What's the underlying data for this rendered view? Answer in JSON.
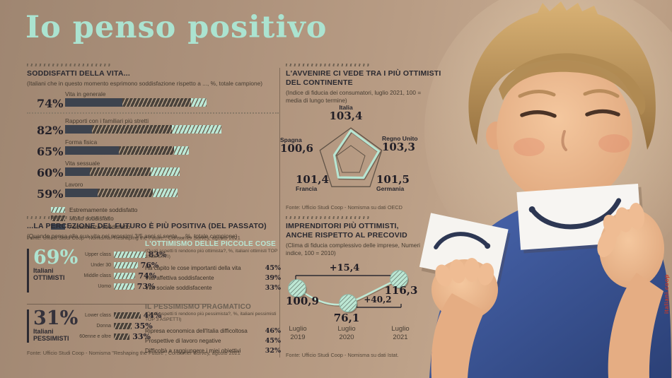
{
  "page": {
    "title": "Io penso positivo",
    "watermark": "italiani.coop"
  },
  "colors": {
    "background": "#b3967c",
    "mint": "#aee3d0",
    "dark_bar": "#3d434e",
    "hatch_dark": "#49413a",
    "text_dark": "#2a2930",
    "watermark_red": "#c43a2b"
  },
  "chart_data": [
    {
      "id": "satisfaction",
      "type": "bar",
      "title": "SODDISFATTI DELLA VITA...",
      "subtitle": "(Italiani che in questo momento esprimono soddisfazione rispetto a ..., %, totale campione)",
      "categories": [
        "Vita in generale",
        "Rapporti con i familiari più stretti",
        "Forma fisica",
        "Vita sessuale",
        "Lavoro"
      ],
      "totals": [
        74,
        82,
        65,
        60,
        59
      ],
      "totals_display": [
        "74%",
        "82%",
        "65%",
        "60%",
        "59%"
      ],
      "series": [
        {
          "name": "Abbastanza soddisfatto",
          "style": "solid-dark",
          "values": [
            30,
            14,
            28,
            13,
            17
          ]
        },
        {
          "name": "Molto soddisfatto",
          "style": "hatch-dark",
          "values": [
            36,
            42,
            29,
            32,
            29
          ]
        },
        {
          "name": "Estremamente soddisfatto",
          "style": "hatch-mint",
          "values": [
            8,
            26,
            8,
            15,
            13
          ]
        }
      ],
      "legend": [
        "Estremamente soddisfatto",
        "Molto soddisfatto",
        "Abbastanza soddisfatto"
      ],
      "legend_styles": [
        "hatch-mint",
        "hatch-dark",
        "solid-dark"
      ],
      "source": "Fonte: Ufficio Studi Coop - Nomisma \"Reshaping the Future\", Consumer Survey, agosto 2021"
    },
    {
      "id": "consumer-confidence-radar",
      "type": "radar",
      "title": "L'AVVENIRE CI VEDE TRA I PIÙ OTTIMISTI DEL CONTINENTE",
      "subtitle": "(Indice di fiducia dei consumatori, luglio 2021, 100 = media di lungo termine)",
      "categories": [
        "Italia",
        "Regno Unito",
        "Germania",
        "Francia",
        "Spagna"
      ],
      "values": [
        103.4,
        103.3,
        101.5,
        101.4,
        100.6
      ],
      "values_display": [
        "103,4",
        "103,3",
        "101,5",
        "101,4",
        "100,6"
      ],
      "rings": [
        100,
        104
      ],
      "source": "Fonte: Ufficio Studi Coop - Nomisma su dati OECD"
    },
    {
      "id": "future-perception",
      "type": "bar",
      "title": "...LA PERCEZIONE DEL FUTURO È PIÙ POSITIVA (DEL PASSATO)",
      "subtitle": "(Quando pensa alla sua vita nei prossimi 3/5 anni si sente..., %, totale campione)",
      "groups": [
        {
          "value_display": "69%",
          "label_line1": "Italiani",
          "label_line2": "OTTIMISTI",
          "style": "hatch-mint",
          "categories": [
            "Upper class",
            "Under 30",
            "Middle class",
            "Uomo"
          ],
          "values": [
            83,
            76,
            74,
            73
          ],
          "values_display": [
            "83%",
            "76%",
            "74%",
            "73%"
          ]
        },
        {
          "value_display": "31%",
          "label_line1": "Italiani",
          "label_line2": "PESSIMISTI",
          "style": "hatch-dark",
          "categories": [
            "Lower class",
            "Donna",
            "60enne e oltre"
          ],
          "values": [
            44,
            35,
            33
          ],
          "values_display": [
            "44%",
            "35%",
            "33%"
          ]
        }
      ],
      "source": "Fonte: Ufficio Studi Coop - Nomisma \"Reshaping the Future\", Consumer Survey, agosto 2021"
    },
    {
      "id": "top3-aspects",
      "type": "table",
      "optimism": {
        "title": "L'OTTIMISMO DELLE PICCOLE COSE",
        "subtitle": "(Quali aspetti ti rendono più ottimista?, %, italiani ottimisti TOP 3 ASPETTI)",
        "rows": [
          [
            "Ha capito le cose importanti della vita",
            "45%"
          ],
          [
            "Vita affettiva soddisfacente",
            "39%"
          ],
          [
            "Vita sociale soddisfacente",
            "33%"
          ]
        ]
      },
      "pessimism": {
        "title": "IL PESSIMISMO PRAGMATICO",
        "subtitle": "(Quali aspetti ti rendono più pessimista?, %, italiani pessimisti TOP 3 ASPETTI)",
        "rows": [
          [
            "Ripresa economica dell'Italia difficoltosa",
            "46%"
          ],
          [
            "Prospettive di lavoro negative",
            "45%"
          ],
          [
            "Difficoltà a raggiungere i miei obiettivi",
            "32%"
          ]
        ]
      }
    },
    {
      "id": "business-confidence",
      "type": "line",
      "title": "IMPRENDITORI PIÙ OTTIMISTI, ANCHE RISPETTO AL PRECOVID",
      "subtitle": "(Clima di fiducia complessivo delle imprese, Numeri indice, 100 = 2010)",
      "x": [
        "Luglio 2019",
        "Luglio 2020",
        "Luglio 2021"
      ],
      "values": [
        100.9,
        76.1,
        116.3
      ],
      "values_display": [
        "100,9",
        "76,1",
        "116,3"
      ],
      "annotations": [
        {
          "label": "+15,4",
          "from": "Luglio 2019",
          "to": "Luglio 2021"
        },
        {
          "label": "+40,2",
          "from": "Luglio 2020",
          "to": "Luglio 2021"
        }
      ],
      "source": "Fonte: Ufficio Studi Coop - Nomisma su dati Istat."
    }
  ]
}
